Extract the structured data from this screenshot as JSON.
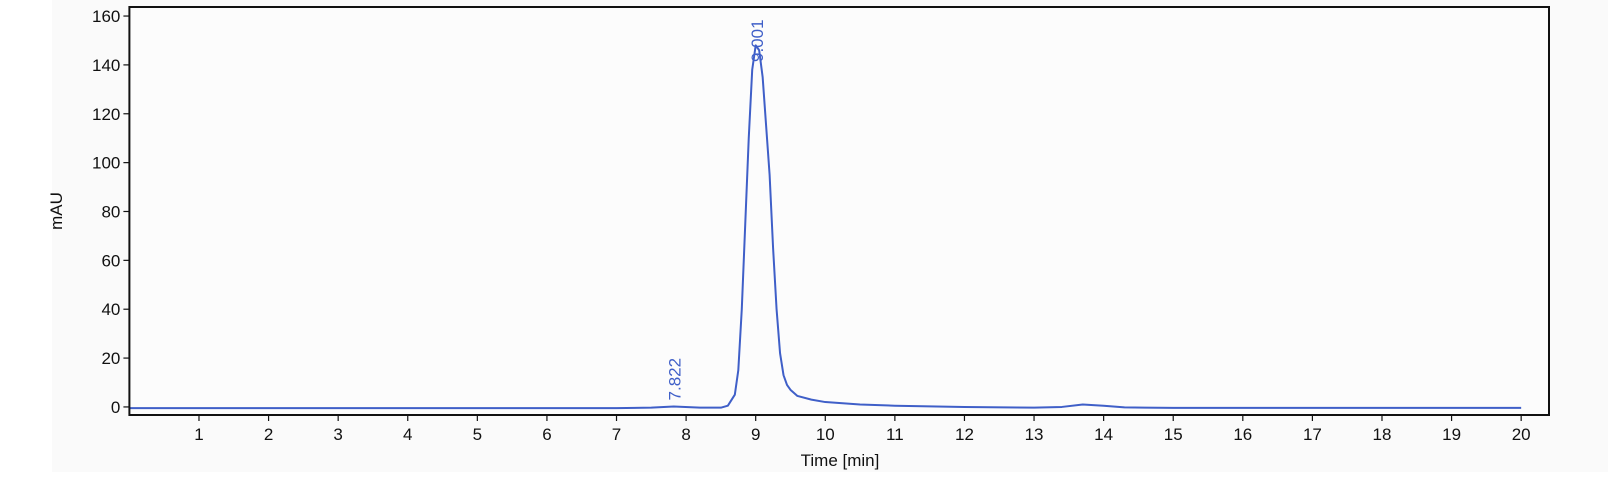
{
  "chart_data": {
    "type": "line",
    "xlabel": "Time [min]",
    "ylabel": "mAU",
    "xlim": [
      0,
      20.4
    ],
    "ylim": [
      -3.3,
      163.7
    ],
    "xticks": [
      1,
      2,
      3,
      4,
      5,
      6,
      7,
      8,
      9,
      10,
      11,
      12,
      13,
      14,
      15,
      16,
      17,
      18,
      19,
      20
    ],
    "yticks": [
      0,
      20,
      40,
      60,
      80,
      100,
      120,
      140,
      160
    ],
    "series": [
      {
        "color": "#3f5fc8",
        "x": [
          0,
          1,
          2,
          3,
          4,
          5,
          6,
          7,
          7.5,
          7.822,
          8.2,
          8.5,
          8.6,
          8.7,
          8.75,
          8.8,
          8.85,
          8.9,
          8.95,
          9.0,
          9.05,
          9.1,
          9.15,
          9.2,
          9.25,
          9.3,
          9.35,
          9.4,
          9.45,
          9.5,
          9.6,
          9.8,
          10,
          10.5,
          11,
          12,
          13,
          13.4,
          13.7,
          14,
          14.3,
          15,
          16,
          17,
          18,
          19,
          20
        ],
        "values": [
          -0.5,
          -0.5,
          -0.5,
          -0.5,
          -0.5,
          -0.5,
          -0.5,
          -0.5,
          -0.3,
          0.2,
          -0.3,
          -0.3,
          0.5,
          5,
          15,
          40,
          75,
          110,
          138,
          148,
          146,
          135,
          115,
          95,
          65,
          40,
          22,
          13,
          9,
          7,
          4.5,
          3,
          2,
          1,
          0.5,
          0,
          -0.3,
          0,
          1,
          0.5,
          -0.2,
          -0.4,
          -0.4,
          -0.4,
          -0.4,
          -0.4,
          -0.4
        ]
      }
    ],
    "annotations": [
      {
        "text": "7.822",
        "x": 7.822,
        "y": 0.2
      },
      {
        "text": "9.001",
        "x": 9.001,
        "y": 148
      }
    ]
  }
}
